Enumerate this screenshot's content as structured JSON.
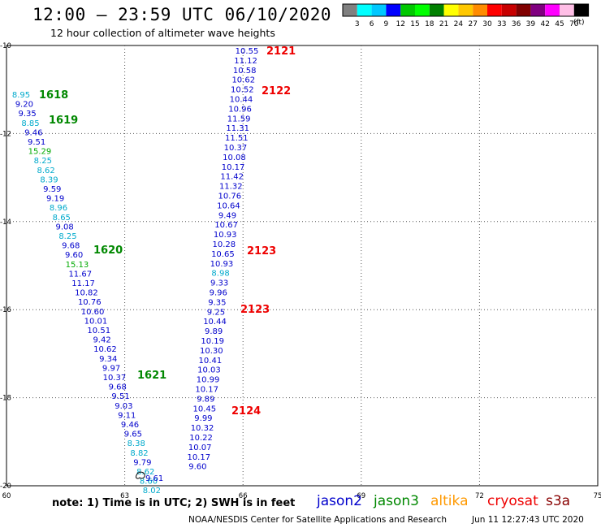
{
  "header": {
    "title": "12:00 — 23:59 UTC 06/10/2020",
    "subtitle": "12 hour collection of altimeter wave heights"
  },
  "scale": {
    "labels": [
      "3",
      "6",
      "9",
      "12",
      "15",
      "18",
      "21",
      "24",
      "27",
      "30",
      "33",
      "36",
      "39",
      "42",
      "45",
      "70"
    ],
    "unit": "(ft)",
    "colors": [
      "#808080",
      "#00ffff",
      "#00c8ff",
      "#0000ff",
      "#00c800",
      "#00ff00",
      "#008000",
      "#ffff00",
      "#ffc800",
      "#ff8c00",
      "#ff0000",
      "#c80000",
      "#800000",
      "#800080",
      "#ff00ff",
      "#ffbee6",
      "#000000"
    ]
  },
  "map": {
    "x_ticks": [
      "60",
      "63",
      "66",
      "69",
      "72",
      "75"
    ],
    "y_ticks": [
      "-10",
      "-12",
      "-14",
      "-16",
      "-18",
      "-20"
    ],
    "lon_range": [
      60,
      75
    ],
    "lat_range": [
      -20,
      -10
    ],
    "tracks": [
      {
        "id": "track-left",
        "points": [
          {
            "v": "8.95",
            "c": "#00aacc"
          },
          {
            "v": "9.20",
            "c": "#0000cc"
          },
          {
            "v": "9.35",
            "c": "#0000cc"
          },
          {
            "v": "8.85",
            "c": "#00aacc"
          },
          {
            "v": "9.46",
            "c": "#0000cc"
          },
          {
            "v": "9.51",
            "c": "#0000cc"
          },
          {
            "v": "15.29",
            "c": "#00aa00"
          },
          {
            "v": "8.25",
            "c": "#00aacc"
          },
          {
            "v": "8.62",
            "c": "#00aacc"
          },
          {
            "v": "8.39",
            "c": "#00aacc"
          },
          {
            "v": "9.59",
            "c": "#0000cc"
          },
          {
            "v": "9.19",
            "c": "#0000cc"
          },
          {
            "v": "8.96",
            "c": "#00aacc"
          },
          {
            "v": "8.65",
            "c": "#00aacc"
          },
          {
            "v": "9.08",
            "c": "#0000cc"
          },
          {
            "v": "8.25",
            "c": "#00aacc"
          },
          {
            "v": "9.68",
            "c": "#0000cc"
          },
          {
            "v": "9.60",
            "c": "#0000cc"
          },
          {
            "v": "15.13",
            "c": "#00aa00"
          },
          {
            "v": "11.67",
            "c": "#0000cc"
          },
          {
            "v": "11.17",
            "c": "#0000cc"
          },
          {
            "v": "10.82",
            "c": "#0000cc"
          },
          {
            "v": "10.76",
            "c": "#0000cc"
          },
          {
            "v": "10.60",
            "c": "#0000cc"
          },
          {
            "v": "10.01",
            "c": "#0000cc"
          },
          {
            "v": "10.51",
            "c": "#0000cc"
          },
          {
            "v": "9.42",
            "c": "#0000cc"
          },
          {
            "v": "10.62",
            "c": "#0000cc"
          },
          {
            "v": "9.34",
            "c": "#0000cc"
          },
          {
            "v": "9.97",
            "c": "#0000cc"
          },
          {
            "v": "10.37",
            "c": "#0000cc"
          },
          {
            "v": "9.68",
            "c": "#0000cc"
          },
          {
            "v": "9.51",
            "c": "#0000cc"
          },
          {
            "v": "9.03",
            "c": "#0000cc"
          },
          {
            "v": "9.11",
            "c": "#0000cc"
          },
          {
            "v": "9.46",
            "c": "#0000cc"
          },
          {
            "v": "9.65",
            "c": "#0000cc"
          },
          {
            "v": "8.38",
            "c": "#00aacc"
          },
          {
            "v": "8.82",
            "c": "#00aacc"
          },
          {
            "v": "9.79",
            "c": "#0000cc"
          },
          {
            "v": "8.62",
            "c": "#00aacc"
          },
          {
            "v": "8.60",
            "c": "#00aacc"
          },
          {
            "v": "8.02",
            "c": "#00aacc"
          }
        ]
      },
      {
        "id": "track-right",
        "points": [
          {
            "v": "10.55",
            "c": "#0000cc"
          },
          {
            "v": "11.12",
            "c": "#0000cc"
          },
          {
            "v": "10.58",
            "c": "#0000cc"
          },
          {
            "v": "10.62",
            "c": "#0000cc"
          },
          {
            "v": "10.52",
            "c": "#0000cc"
          },
          {
            "v": "10.44",
            "c": "#0000cc"
          },
          {
            "v": "10.96",
            "c": "#0000cc"
          },
          {
            "v": "11.59",
            "c": "#0000cc"
          },
          {
            "v": "11.31",
            "c": "#0000cc"
          },
          {
            "v": "11.51",
            "c": "#0000cc"
          },
          {
            "v": "10.37",
            "c": "#0000cc"
          },
          {
            "v": "10.08",
            "c": "#0000cc"
          },
          {
            "v": "10.17",
            "c": "#0000cc"
          },
          {
            "v": "11.42",
            "c": "#0000cc"
          },
          {
            "v": "11.32",
            "c": "#0000cc"
          },
          {
            "v": "10.76",
            "c": "#0000cc"
          },
          {
            "v": "10.64",
            "c": "#0000cc"
          },
          {
            "v": "9.49",
            "c": "#0000cc"
          },
          {
            "v": "10.67",
            "c": "#0000cc"
          },
          {
            "v": "10.93",
            "c": "#0000cc"
          },
          {
            "v": "10.28",
            "c": "#0000cc"
          },
          {
            "v": "10.65",
            "c": "#0000cc"
          },
          {
            "v": "10.93",
            "c": "#0000cc"
          },
          {
            "v": "8.98",
            "c": "#00aacc"
          },
          {
            "v": "9.33",
            "c": "#0000cc"
          },
          {
            "v": "9.96",
            "c": "#0000cc"
          },
          {
            "v": "9.35",
            "c": "#0000cc"
          },
          {
            "v": "9.25",
            "c": "#0000cc"
          },
          {
            "v": "10.44",
            "c": "#0000cc"
          },
          {
            "v": "9.89",
            "c": "#0000cc"
          },
          {
            "v": "10.19",
            "c": "#0000cc"
          },
          {
            "v": "10.30",
            "c": "#0000cc"
          },
          {
            "v": "10.41",
            "c": "#0000cc"
          },
          {
            "v": "10.03",
            "c": "#0000cc"
          },
          {
            "v": "10.99",
            "c": "#0000cc"
          },
          {
            "v": "10.17",
            "c": "#0000cc"
          },
          {
            "v": "9.89",
            "c": "#0000cc"
          },
          {
            "v": "10.45",
            "c": "#0000cc"
          },
          {
            "v": "9.99",
            "c": "#0000cc"
          },
          {
            "v": "10.32",
            "c": "#0000cc"
          },
          {
            "v": "10.22",
            "c": "#0000cc"
          },
          {
            "v": "10.07",
            "c": "#0000cc"
          },
          {
            "v": "10.17",
            "c": "#0000cc"
          },
          {
            "v": "9.60",
            "c": "#0000cc"
          }
        ]
      }
    ],
    "time_labels": [
      {
        "text": "1618",
        "color": "#008800"
      },
      {
        "text": "1619",
        "color": "#008800"
      },
      {
        "text": "1620",
        "color": "#008800"
      },
      {
        "text": "1621",
        "color": "#008800"
      },
      {
        "text": "2121",
        "color": "#ee0000"
      },
      {
        "text": "2122",
        "color": "#ee0000"
      },
      {
        "text": "2123",
        "color": "#ee0000"
      },
      {
        "text": "2123",
        "color": "#ee0000"
      },
      {
        "text": "2124",
        "color": "#ee0000"
      }
    ],
    "island_label": "9.61"
  },
  "footer": {
    "note": "note: 1) Time is in UTC; 2) SWH is in feet",
    "credit": "NOAA/NESDIS Center for Satellite Applications and Research",
    "timestamp": "Jun 11 12:27:43 UTC 2020"
  },
  "legend": [
    {
      "name": "jason2",
      "color": "#0000cc"
    },
    {
      "name": "jason3",
      "color": "#008800"
    },
    {
      "name": "altika",
      "color": "#ff9900"
    },
    {
      "name": "cryosat",
      "color": "#ee0000"
    },
    {
      "name": "s3a",
      "color": "#880000"
    }
  ]
}
